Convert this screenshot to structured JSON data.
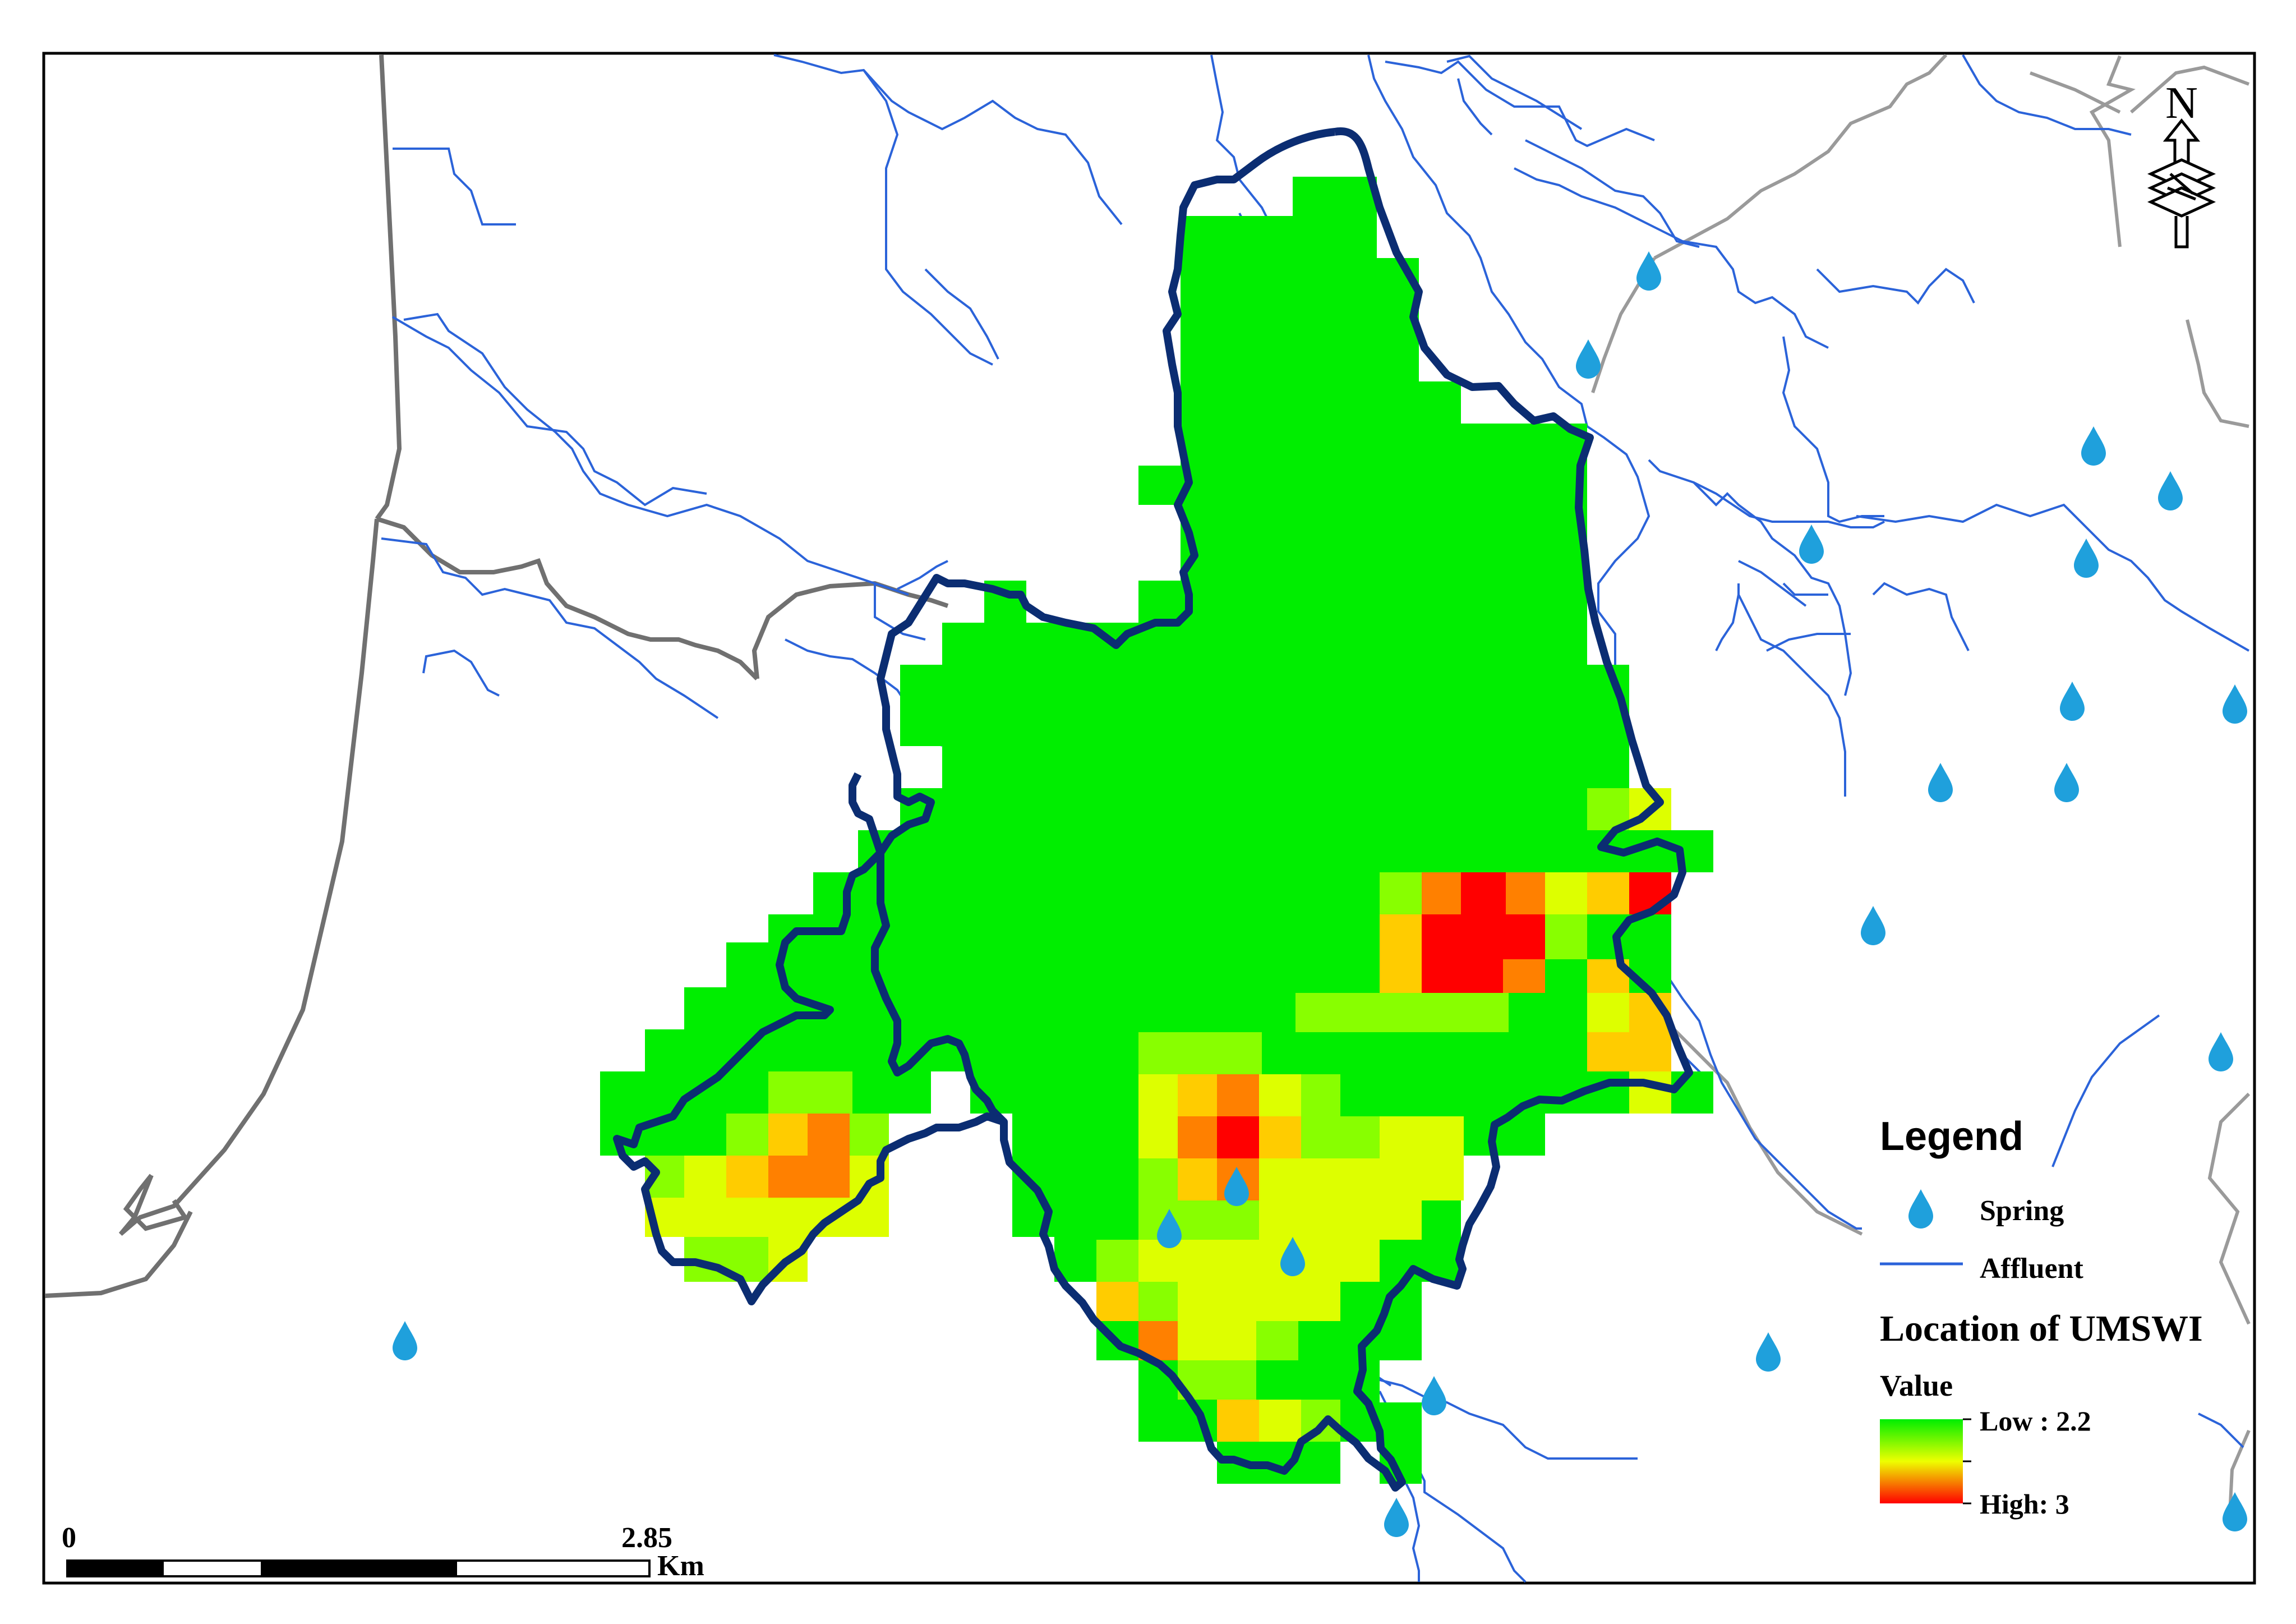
{
  "legend": {
    "title": "Legend",
    "items": [
      {
        "label": "Spring",
        "icon": "water-drop-icon",
        "color": "#1fa0dc"
      },
      {
        "label": "Affluent",
        "icon": "line-icon",
        "color": "#2b63d9"
      }
    ],
    "layer_title": "Location of UMSWI",
    "value_title": "Value",
    "low_label": "Low : 2.2",
    "high_label": "High: 3",
    "ramp_colors": [
      "#00ee00",
      "#eeff00",
      "#ff0000"
    ]
  },
  "scalebar": {
    "start": "0",
    "end": "2.85",
    "unit": "Km"
  },
  "north_arrow": {
    "label": "N",
    "icon": "north-arrow-icon"
  },
  "colors": {
    "boundary": "#0b2d72",
    "river": "#2b63d9",
    "road": "#707070",
    "road_light": "#9a9a9a",
    "spring": "#1fa0dc",
    "low": "#00ee00",
    "mid": "#ddff00",
    "high": "#ff0000"
  }
}
